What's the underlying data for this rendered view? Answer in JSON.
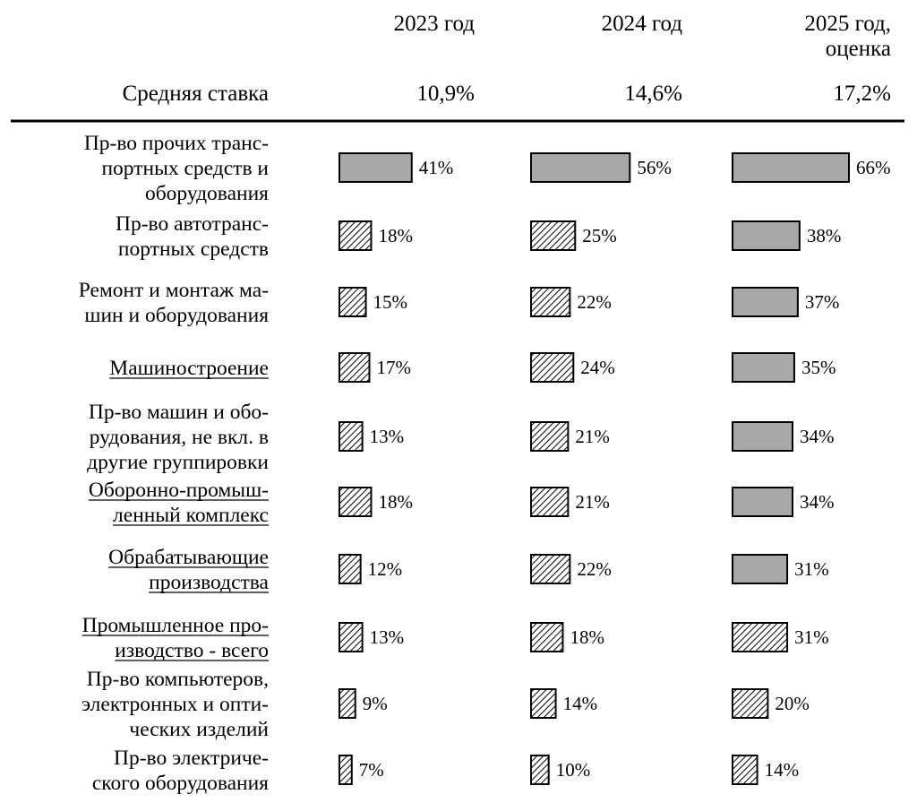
{
  "chart_data": {
    "type": "bar",
    "title": "",
    "rate_label": "Средняя ставка",
    "periods": [
      {
        "label_lines": [
          "2023 год"
        ],
        "rate": "10,9%"
      },
      {
        "label_lines": [
          "2024 год"
        ],
        "rate": "14,6%"
      },
      {
        "label_lines": [
          "2025 год,",
          "оценка"
        ],
        "rate": "17,2%"
      }
    ],
    "categories": [
      {
        "label_lines": [
          "Пр-во прочих транс-",
          "портных средств и",
          "оборудования"
        ],
        "underline": false
      },
      {
        "label_lines": [
          "Пр-во автотранс-",
          "портных средств"
        ],
        "underline": false
      },
      {
        "label_lines": [
          "Ремонт и монтаж ма-",
          "шин и оборудования"
        ],
        "underline": false
      },
      {
        "label_lines": [
          "Машиностроение"
        ],
        "underline": true
      },
      {
        "label_lines": [
          "Пр-во машин и обо-",
          "рудования, не вкл. в",
          "другие группировки"
        ],
        "underline": false
      },
      {
        "label_lines": [
          "Оборонно-промыш-",
          "ленный комплекс"
        ],
        "underline": true
      },
      {
        "label_lines": [
          "Обрабатывающие",
          "производства"
        ],
        "underline": true
      },
      {
        "label_lines": [
          "Промышленное про-",
          "изводство - всего"
        ],
        "underline": true
      },
      {
        "label_lines": [
          "Пр-во компьютеров,",
          "электронных и опти-",
          "ческих изделий"
        ],
        "underline": false
      },
      {
        "label_lines": [
          "Пр-во электриче-",
          "ского оборудования"
        ],
        "underline": false
      }
    ],
    "series": [
      {
        "name": "2023 год",
        "values": [
          41,
          18,
          15,
          17,
          13,
          18,
          12,
          13,
          9,
          7
        ],
        "labels": [
          "41%",
          "18%",
          "15%",
          "17%",
          "13%",
          "18%",
          "12%",
          "13%",
          "9%",
          "7%"
        ],
        "styles": [
          "solid",
          "hatch",
          "hatch",
          "hatch",
          "hatch",
          "hatch",
          "hatch",
          "hatch",
          "hatch",
          "hatch"
        ]
      },
      {
        "name": "2024 год",
        "values": [
          56,
          25,
          22,
          24,
          21,
          21,
          22,
          18,
          14,
          10
        ],
        "labels": [
          "56%",
          "25%",
          "22%",
          "24%",
          "21%",
          "21%",
          "22%",
          "18%",
          "14%",
          "10%"
        ],
        "styles": [
          "solid",
          "hatch",
          "hatch",
          "hatch",
          "hatch",
          "hatch",
          "hatch",
          "hatch",
          "hatch",
          "hatch"
        ]
      },
      {
        "name": "2025 год, оценка",
        "values": [
          66,
          38,
          37,
          35,
          34,
          34,
          31,
          31,
          20,
          14
        ],
        "labels": [
          "66%",
          "38%",
          "37%",
          "35%",
          "34%",
          "34%",
          "31%",
          "31%",
          "20%",
          "14%"
        ],
        "styles": [
          "solid",
          "solid",
          "solid",
          "solid",
          "solid",
          "solid",
          "solid",
          "hatch",
          "hatch",
          "hatch"
        ]
      }
    ],
    "xlim": [
      0,
      66
    ],
    "unit": "%",
    "colors": {
      "solid_fill": "#a8a8a8",
      "hatch_fill": "#ffffff",
      "stroke": "#000000"
    }
  }
}
